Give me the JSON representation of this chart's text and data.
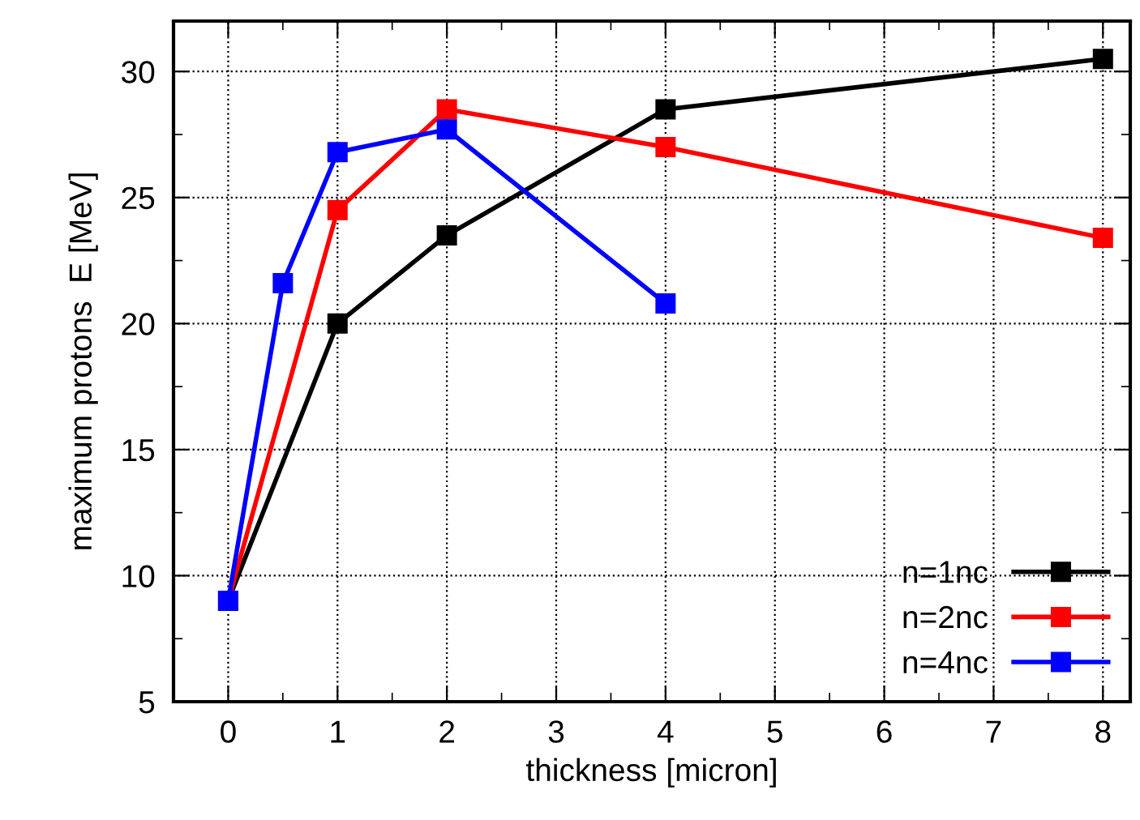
{
  "chart_data": {
    "type": "line",
    "xlabel": "thickness [micron]",
    "ylabel": "maximum protons  E [MeV]",
    "xlim": [
      -0.5,
      8.25
    ],
    "xticks": [
      0,
      1,
      2,
      3,
      4,
      5,
      6,
      7,
      8
    ],
    "ylim": [
      5,
      32
    ],
    "yticks": [
      5,
      10,
      15,
      20,
      25,
      30
    ],
    "grid": true,
    "legend": "bottom right",
    "marker": "square",
    "line_style": "solid",
    "series": [
      {
        "name": "n=1nc",
        "color": "#000000",
        "x": [
          0,
          1,
          2,
          4,
          8
        ],
        "values": [
          9,
          20,
          23.5,
          28.5,
          30.5
        ]
      },
      {
        "name": "n=2nc",
        "color": "#ff0000",
        "x": [
          0,
          1,
          2,
          4,
          8
        ],
        "values": [
          9,
          24.5,
          28.5,
          27,
          23.4
        ]
      },
      {
        "name": "n=4nc",
        "color": "#0000ff",
        "x": [
          0,
          0.5,
          1,
          2,
          4
        ],
        "values": [
          9,
          21.6,
          26.8,
          27.7,
          20.8
        ]
      }
    ]
  }
}
